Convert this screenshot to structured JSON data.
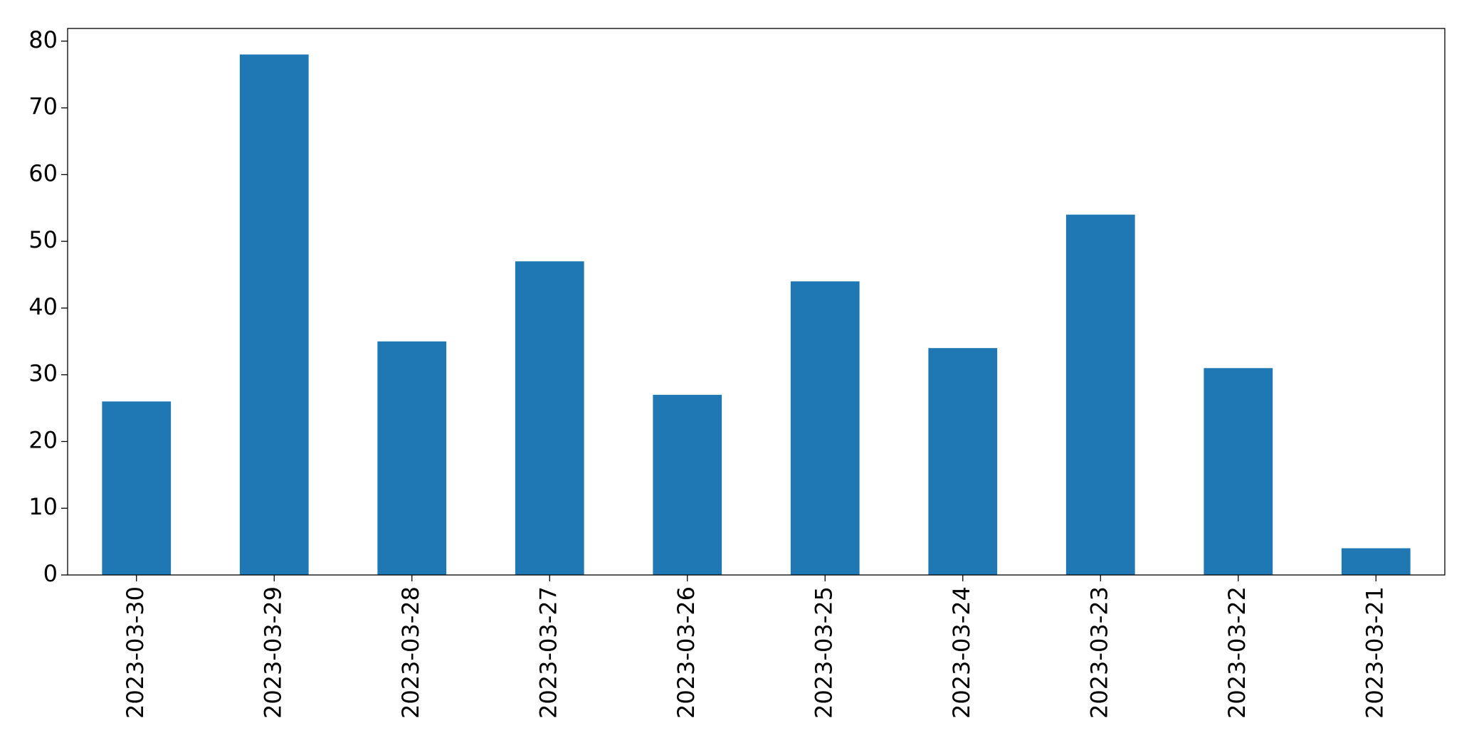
{
  "chart_data": {
    "type": "bar",
    "categories": [
      "2023-03-30",
      "2023-03-29",
      "2023-03-28",
      "2023-03-27",
      "2023-03-26",
      "2023-03-25",
      "2023-03-24",
      "2023-03-23",
      "2023-03-22",
      "2023-03-21"
    ],
    "values": [
      26,
      78,
      35,
      47,
      27,
      44,
      34,
      54,
      31,
      4
    ],
    "color": "#1f77b4",
    "ylim": [
      0,
      81.9
    ],
    "yticks": [
      0,
      10,
      20,
      30,
      40,
      50,
      60,
      70,
      80
    ],
    "grid": false
  }
}
